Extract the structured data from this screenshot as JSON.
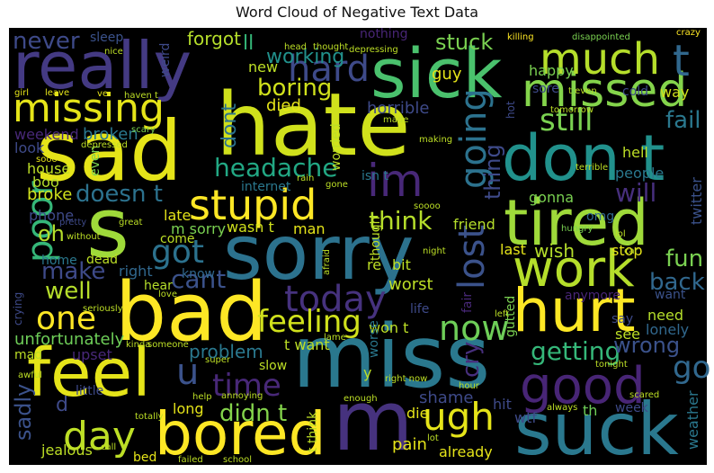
{
  "chart_data": {
    "type": "wordcloud",
    "title": "Word Cloud of Negative Text Data",
    "words": [
      {
        "text": "sad",
        "color": "#e5e419",
        "rotate": 0
      },
      {
        "text": "hate",
        "color": "#d0e11c",
        "rotate": 0
      },
      {
        "text": "miss",
        "color": "#2a788e",
        "rotate": 0
      },
      {
        "text": "sorry",
        "color": "#2c728e",
        "rotate": 0
      },
      {
        "text": "bad",
        "color": "#fde725",
        "rotate": 0
      },
      {
        "text": "really",
        "color": "#443a83",
        "rotate": 0
      },
      {
        "text": "sick",
        "color": "#4ac16d",
        "rotate": 0
      },
      {
        "text": "tired",
        "color": "#9fda3a",
        "rotate": 0
      },
      {
        "text": "don t",
        "color": "#21918c",
        "rotate": 0
      },
      {
        "text": "m",
        "color": "#46327e",
        "rotate": 0
      },
      {
        "text": "suck",
        "color": "#2a788e",
        "rotate": 0
      },
      {
        "text": "feel",
        "color": "#e5e419",
        "rotate": 0
      },
      {
        "text": "bored",
        "color": "#fde725",
        "rotate": 0
      },
      {
        "text": "hurt",
        "color": "#fde725",
        "rotate": 0
      },
      {
        "text": "work",
        "color": "#b5de2b",
        "rotate": 0
      },
      {
        "text": "good",
        "color": "#482576",
        "rotate": 0
      },
      {
        "text": "s",
        "color": "#9fda3a",
        "rotate": 0
      },
      {
        "text": "stupid",
        "color": "#fde725",
        "rotate": 0
      },
      {
        "text": "missed",
        "color": "#84d44b",
        "rotate": 0
      },
      {
        "text": "missing",
        "color": "#e5e419",
        "rotate": 0
      },
      {
        "text": "much",
        "color": "#b5de2b",
        "rotate": 0
      },
      {
        "text": "t",
        "color": "#31688e",
        "rotate": 0
      },
      {
        "text": "im",
        "color": "#482878",
        "rotate": 0
      },
      {
        "text": "hard",
        "color": "#3e4a89",
        "rotate": 0
      },
      {
        "text": "day",
        "color": "#bddf26",
        "rotate": 0
      },
      {
        "text": "ugh",
        "color": "#e5e419",
        "rotate": 0
      },
      {
        "text": "today",
        "color": "#46327e",
        "rotate": 0
      },
      {
        "text": "one",
        "color": "#fde725",
        "rotate": 0
      },
      {
        "text": "now",
        "color": "#6ece58",
        "rotate": 0
      },
      {
        "text": "time",
        "color": "#482878",
        "rotate": 0
      },
      {
        "text": "going",
        "color": "#2c728e",
        "rotate": 90
      },
      {
        "text": "lost",
        "color": "#3b528b",
        "rotate": 90
      },
      {
        "text": "poor",
        "color": "#35b779",
        "rotate": 90
      },
      {
        "text": "still",
        "color": "#7ad151",
        "rotate": 0
      },
      {
        "text": "headache",
        "color": "#22a884",
        "rotate": 0
      },
      {
        "text": "feeling",
        "color": "#d0e11c",
        "rotate": 0
      },
      {
        "text": "go",
        "color": "#31688e",
        "rotate": 0
      },
      {
        "text": "got",
        "color": "#2c728e",
        "rotate": 0
      },
      {
        "text": "never",
        "color": "#3e4a89",
        "rotate": 0
      },
      {
        "text": "fail",
        "color": "#2a788e",
        "rotate": 0
      },
      {
        "text": "fun",
        "color": "#7ad151",
        "rotate": 0
      },
      {
        "text": "u",
        "color": "#3b528b",
        "rotate": 0
      },
      {
        "text": "well",
        "color": "#b5de2b",
        "rotate": 0
      },
      {
        "text": "make",
        "color": "#3e4a89",
        "rotate": 0
      },
      {
        "text": "think",
        "color": "#b5de2b",
        "rotate": 0
      },
      {
        "text": "will",
        "color": "#472f7d",
        "rotate": 0
      },
      {
        "text": "doesn t",
        "color": "#2c728e",
        "rotate": 0
      },
      {
        "text": "boring",
        "color": "#d0e11c",
        "rotate": 0
      },
      {
        "text": "back",
        "color": "#31688e",
        "rotate": 0
      },
      {
        "text": "getting",
        "color": "#35b779",
        "rotate": 0
      },
      {
        "text": "wrong",
        "color": "#3b528b",
        "rotate": 0
      },
      {
        "text": "cant",
        "color": "#3b528b",
        "rotate": 0
      },
      {
        "text": "didn t",
        "color": "#84d44b",
        "rotate": 0
      },
      {
        "text": "oh",
        "color": "#b5de2b",
        "rotate": 0
      },
      {
        "text": "stuck",
        "color": "#7ad151",
        "rotate": 0
      },
      {
        "text": "working",
        "color": "#21918c",
        "rotate": 0
      },
      {
        "text": "dont",
        "color": "#2c728e",
        "rotate": 90
      },
      {
        "text": "thing",
        "color": "#3e4a89",
        "rotate": 90
      },
      {
        "text": "sadly",
        "color": "#3b528b",
        "rotate": 90
      },
      {
        "text": "cry",
        "color": "#472f7d",
        "rotate": 90
      },
      {
        "text": "wish",
        "color": "#b5de2b",
        "rotate": 0
      },
      {
        "text": "problem",
        "color": "#2a788e",
        "rotate": 0
      },
      {
        "text": "unfortunately",
        "color": "#6ece58",
        "rotate": 0
      },
      {
        "text": "upset",
        "color": "#482878",
        "rotate": 0
      },
      {
        "text": "forgot",
        "color": "#b5de2b",
        "rotate": 0
      },
      {
        "text": "ll",
        "color": "#35b779",
        "rotate": 0
      },
      {
        "text": "horrible",
        "color": "#3e4a89",
        "rotate": 0
      },
      {
        "text": "died",
        "color": "#e5e419",
        "rotate": 0
      },
      {
        "text": "new",
        "color": "#bddf26",
        "rotate": 0
      },
      {
        "text": "sleep",
        "color": "#3b528b",
        "rotate": 0
      },
      {
        "text": "nothing",
        "color": "#482576",
        "rotate": 0
      },
      {
        "text": "guy",
        "color": "#e5e419",
        "rotate": 0
      },
      {
        "text": "happy",
        "color": "#7ad151",
        "rotate": 0
      },
      {
        "text": "broken",
        "color": "#2a788e",
        "rotate": 0
      },
      {
        "text": "weekend",
        "color": "#482878",
        "rotate": 0
      },
      {
        "text": "look",
        "color": "#3e4a89",
        "rotate": 0
      },
      {
        "text": "house",
        "color": "#bddf26",
        "rotate": 0
      },
      {
        "text": "boo",
        "color": "#b5de2b",
        "rotate": 0
      },
      {
        "text": "broke",
        "color": "#d0e11c",
        "rotate": 0
      },
      {
        "text": "phone",
        "color": "#3e4a89",
        "rotate": 0
      },
      {
        "text": "home",
        "color": "#2a788e",
        "rotate": 0
      },
      {
        "text": "dead",
        "color": "#bddf26",
        "rotate": 0
      },
      {
        "text": "right",
        "color": "#31688e",
        "rotate": 0
      },
      {
        "text": "late",
        "color": "#e5e419",
        "rotate": 0
      },
      {
        "text": "m sorry",
        "color": "#7ad151",
        "rotate": 0
      },
      {
        "text": "wasn t",
        "color": "#d0e11c",
        "rotate": 0
      },
      {
        "text": "man",
        "color": "#e5e419",
        "rotate": 0
      },
      {
        "text": "come",
        "color": "#bddf26",
        "rotate": 0
      },
      {
        "text": "know",
        "color": "#31688e",
        "rotate": 0
      },
      {
        "text": "hear",
        "color": "#b5de2b",
        "rotate": 0
      },
      {
        "text": "internet",
        "color": "#2a788e",
        "rotate": 0
      },
      {
        "text": "isn t",
        "color": "#2a788e",
        "rotate": 0
      },
      {
        "text": "omg",
        "color": "#31688e",
        "rotate": 0
      },
      {
        "text": "gonna",
        "color": "#7ad151",
        "rotate": 0
      },
      {
        "text": "friend",
        "color": "#b5de2b",
        "rotate": 0
      },
      {
        "text": "last",
        "color": "#e5e419",
        "rotate": 0
      },
      {
        "text": "stop",
        "color": "#e5e419",
        "rotate": 0
      },
      {
        "text": "bit",
        "color": "#bddf26",
        "rotate": 0
      },
      {
        "text": "worst",
        "color": "#bddf26",
        "rotate": 0
      },
      {
        "text": "re",
        "color": "#bddf26",
        "rotate": 0
      },
      {
        "text": "life",
        "color": "#3e4a89",
        "rotate": 0
      },
      {
        "text": "want",
        "color": "#3b528b",
        "rotate": 0
      },
      {
        "text": "anymore",
        "color": "#482576",
        "rotate": 0
      },
      {
        "text": "need",
        "color": "#b5de2b",
        "rotate": 0
      },
      {
        "text": "lonely",
        "color": "#31688e",
        "rotate": 0
      },
      {
        "text": "see",
        "color": "#bddf26",
        "rotate": 0
      },
      {
        "text": "say",
        "color": "#3e4a89",
        "rotate": 0
      },
      {
        "text": "hell",
        "color": "#bddf26",
        "rotate": 0
      },
      {
        "text": "people",
        "color": "#2a788e",
        "rotate": 0
      },
      {
        "text": "sore",
        "color": "#3e4a89",
        "rotate": 0
      },
      {
        "text": "cold",
        "color": "#3e4a89",
        "rotate": 0
      },
      {
        "text": "way",
        "color": "#d0e11c",
        "rotate": 0
      },
      {
        "text": "twitter",
        "color": "#3b528b",
        "rotate": 90
      },
      {
        "text": "weather",
        "color": "#2a788e",
        "rotate": 90
      },
      {
        "text": "week",
        "color": "#3e4a89",
        "rotate": 0
      },
      {
        "text": "wtf",
        "color": "#3e4a89",
        "rotate": 0
      },
      {
        "text": "already",
        "color": "#e5e419",
        "rotate": 0
      },
      {
        "text": "pain",
        "color": "#e5e419",
        "rotate": 0
      },
      {
        "text": "shame",
        "color": "#3e4a89",
        "rotate": 0
      },
      {
        "text": "hit",
        "color": "#3e4a89",
        "rotate": 0
      },
      {
        "text": "die",
        "color": "#e5e419",
        "rotate": 0
      },
      {
        "text": "th",
        "color": "#6ece58",
        "rotate": 0
      },
      {
        "text": "jealous",
        "color": "#bddf26",
        "rotate": 0
      },
      {
        "text": "bed",
        "color": "#e5e419",
        "rotate": 0
      },
      {
        "text": "little",
        "color": "#3e4a89",
        "rotate": 0
      },
      {
        "text": "long",
        "color": "#e5e419",
        "rotate": 0
      },
      {
        "text": "slow",
        "color": "#bddf26",
        "rotate": 0
      },
      {
        "text": "y",
        "color": "#bddf26",
        "rotate": 0
      },
      {
        "text": "d",
        "color": "#3e4a89",
        "rotate": 0
      },
      {
        "text": "mad",
        "color": "#bddf26",
        "rotate": 0
      },
      {
        "text": "crying",
        "color": "#3e4a89",
        "rotate": 90
      },
      {
        "text": "won t",
        "color": "#bddf26",
        "rotate": 0
      },
      {
        "text": "t want",
        "color": "#bddf26",
        "rotate": 0
      },
      {
        "text": "t think",
        "color": "#bddf26",
        "rotate": 90
      },
      {
        "text": "worse",
        "color": "#2a788e",
        "rotate": 90
      },
      {
        "text": "gutted",
        "color": "#7ad151",
        "rotate": 90
      },
      {
        "text": "fair",
        "color": "#482878",
        "rotate": 90
      },
      {
        "text": "though",
        "color": "#bddf26",
        "rotate": 90
      },
      {
        "text": "worried",
        "color": "#bddf26",
        "rotate": 90
      },
      {
        "text": "weird",
        "color": "#3e4a89",
        "rotate": 90
      },
      {
        "text": "even",
        "color": "#7ad151",
        "rotate": 90
      },
      {
        "text": "depressed",
        "color": "#bddf26",
        "rotate": 0
      },
      {
        "text": "scary",
        "color": "#7ad151",
        "rotate": 0
      },
      {
        "text": "nice",
        "color": "#bddf26",
        "rotate": 0
      },
      {
        "text": "girl",
        "color": "#e5e419",
        "rotate": 0
      },
      {
        "text": "leave",
        "color": "#e5e419",
        "rotate": 0
      },
      {
        "text": "ve",
        "color": "#e5e419",
        "rotate": 0
      },
      {
        "text": "haven t",
        "color": "#bddf26",
        "rotate": 0
      },
      {
        "text": "head",
        "color": "#bddf26",
        "rotate": 0
      },
      {
        "text": "thought",
        "color": "#bddf26",
        "rotate": 0
      },
      {
        "text": "depressing",
        "color": "#bddf26",
        "rotate": 0
      },
      {
        "text": "killing",
        "color": "#fde725",
        "rotate": 0
      },
      {
        "text": "disappointed",
        "color": "#7ad151",
        "rotate": 0
      },
      {
        "text": "crazy",
        "color": "#fde725",
        "rotate": 0
      },
      {
        "text": "made",
        "color": "#bddf26",
        "rotate": 0
      },
      {
        "text": "making",
        "color": "#bddf26",
        "rotate": 0
      },
      {
        "text": "tomorrow",
        "color": "#bddf26",
        "rotate": 0
      },
      {
        "text": "terrible",
        "color": "#bddf26",
        "rotate": 0
      },
      {
        "text": "hot",
        "color": "#3e4a89",
        "rotate": 90
      },
      {
        "text": "t even",
        "color": "#bddf26",
        "rotate": 0
      },
      {
        "text": "sooo",
        "color": "#e5e419",
        "rotate": 0
      },
      {
        "text": "gone",
        "color": "#bddf26",
        "rotate": 0
      },
      {
        "text": "rain",
        "color": "#bddf26",
        "rotate": 0
      },
      {
        "text": "soooo",
        "color": "#bddf26",
        "rotate": 0
      },
      {
        "text": "hungry",
        "color": "#7ad151",
        "rotate": 0
      },
      {
        "text": "great",
        "color": "#bddf26",
        "rotate": 0
      },
      {
        "text": "pretty",
        "color": "#3e4a89",
        "rotate": 0
      },
      {
        "text": "without",
        "color": "#bddf26",
        "rotate": 0
      },
      {
        "text": "night",
        "color": "#bddf26",
        "rotate": 0
      },
      {
        "text": "afraid",
        "color": "#bddf26",
        "rotate": 90
      },
      {
        "text": "lol",
        "color": "#bddf26",
        "rotate": 0
      },
      {
        "text": "car",
        "color": "#bddf26",
        "rotate": 0
      },
      {
        "text": "love",
        "color": "#bddf26",
        "rotate": 0
      },
      {
        "text": "seriously",
        "color": "#bddf26",
        "rotate": 0
      },
      {
        "text": "left",
        "color": "#bddf26",
        "rotate": 0
      },
      {
        "text": "lame",
        "color": "#bddf26",
        "rotate": 0
      },
      {
        "text": "kinda",
        "color": "#bddf26",
        "rotate": 0
      },
      {
        "text": "someone",
        "color": "#bddf26",
        "rotate": 0
      },
      {
        "text": "super",
        "color": "#bddf26",
        "rotate": 0
      },
      {
        "text": "tonight",
        "color": "#bddf26",
        "rotate": 0
      },
      {
        "text": "awful",
        "color": "#bddf26",
        "rotate": 0
      },
      {
        "text": "help",
        "color": "#bddf26",
        "rotate": 0
      },
      {
        "text": "annoying",
        "color": "#bddf26",
        "rotate": 0
      },
      {
        "text": "right now",
        "color": "#bddf26",
        "rotate": 0
      },
      {
        "text": "enough",
        "color": "#bddf26",
        "rotate": 0
      },
      {
        "text": "hour",
        "color": "#bddf26",
        "rotate": 0
      },
      {
        "text": "always",
        "color": "#bddf26",
        "rotate": 0
      },
      {
        "text": "scared",
        "color": "#bddf26",
        "rotate": 0
      },
      {
        "text": "lot",
        "color": "#bddf26",
        "rotate": 0
      },
      {
        "text": "totally",
        "color": "#bddf26",
        "rotate": 0
      },
      {
        "text": "call",
        "color": "#bddf26",
        "rotate": 0
      },
      {
        "text": "failed",
        "color": "#bddf26",
        "rotate": 0
      },
      {
        "text": "school",
        "color": "#bddf26",
        "rotate": 0
      }
    ]
  }
}
